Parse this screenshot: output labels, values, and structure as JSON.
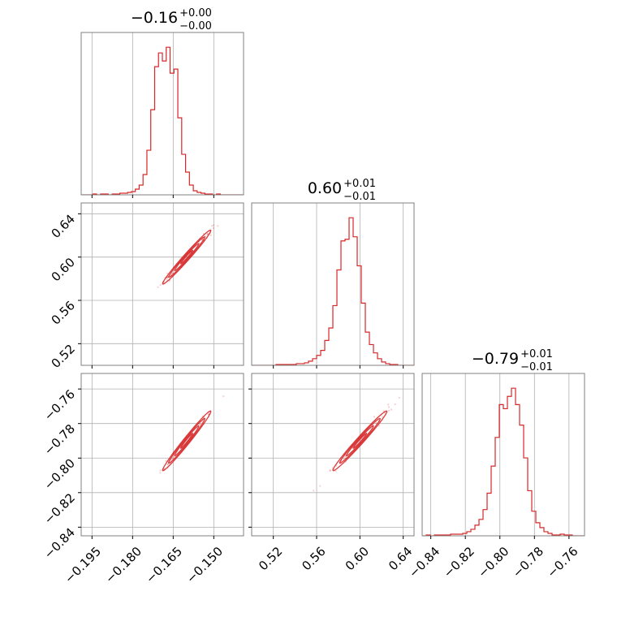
{
  "chart_data": {
    "type": "corner",
    "color": "#d62728",
    "grid": true,
    "parameters": [
      {
        "median": -0.16,
        "title": {
          "main": "−0.16",
          "plus": "+0.00",
          "minus": "−0.00"
        },
        "range": [
          -0.199,
          -0.139
        ],
        "ticks": [
          -0.195,
          -0.18,
          -0.165,
          -0.15
        ],
        "tick_labels": [
          "−0.195",
          "−0.180",
          "−0.165",
          "−0.150"
        ],
        "hist_bins": [
          -0.199,
          -0.139,
          42
        ],
        "hist_values": [
          0,
          0,
          0,
          1,
          0,
          1,
          1,
          0,
          1,
          1,
          2,
          2,
          3,
          4,
          7,
          12,
          25,
          55,
          105,
          158,
          175,
          165,
          182,
          150,
          155,
          95,
          50,
          28,
          12,
          5,
          3,
          2,
          1,
          1,
          0,
          1,
          0,
          0,
          0,
          0,
          0,
          0
        ]
      },
      {
        "median": 0.6,
        "title": {
          "main": "0.60",
          "plus": "+0.01",
          "minus": "−0.01"
        },
        "range": [
          0.5,
          0.65
        ],
        "ticks": [
          0.52,
          0.56,
          0.6,
          0.64
        ],
        "tick_labels": [
          "0.52",
          "0.56",
          "0.60",
          "0.64"
        ],
        "hist_bins": [
          0.5,
          0.65,
          40
        ],
        "hist_values": [
          0,
          0,
          0,
          0,
          0,
          0,
          1,
          1,
          1,
          1,
          1,
          2,
          2,
          3,
          5,
          8,
          12,
          18,
          30,
          45,
          72,
          115,
          150,
          152,
          178,
          155,
          120,
          75,
          40,
          25,
          15,
          8,
          4,
          2,
          1,
          1,
          0,
          0,
          0,
          0
        ]
      },
      {
        "median": -0.79,
        "title": {
          "main": "−0.79",
          "plus": "+0.01",
          "minus": "−0.01"
        },
        "range": [
          -0.845,
          -0.751
        ],
        "ticks": [
          -0.84,
          -0.82,
          -0.8,
          -0.78,
          -0.76
        ],
        "tick_labels": [
          "−0.84",
          "−0.82",
          "−0.80",
          "−0.78",
          "−0.76"
        ],
        "hist_bins": [
          -0.845,
          -0.751,
          40
        ],
        "hist_values": [
          0,
          1,
          0,
          1,
          1,
          1,
          1,
          2,
          2,
          2,
          3,
          5,
          8,
          13,
          20,
          32,
          52,
          85,
          120,
          160,
          155,
          170,
          180,
          160,
          135,
          95,
          55,
          30,
          16,
          10,
          5,
          3,
          1,
          1,
          2,
          1,
          1,
          0,
          0,
          0
        ]
      }
    ],
    "correlations": {
      "1_0": 0.985,
      "2_0": 0.985,
      "2_1": 0.985
    },
    "contour_sigmas": [
      0.5,
      1.0,
      1.5,
      2.0
    ]
  }
}
